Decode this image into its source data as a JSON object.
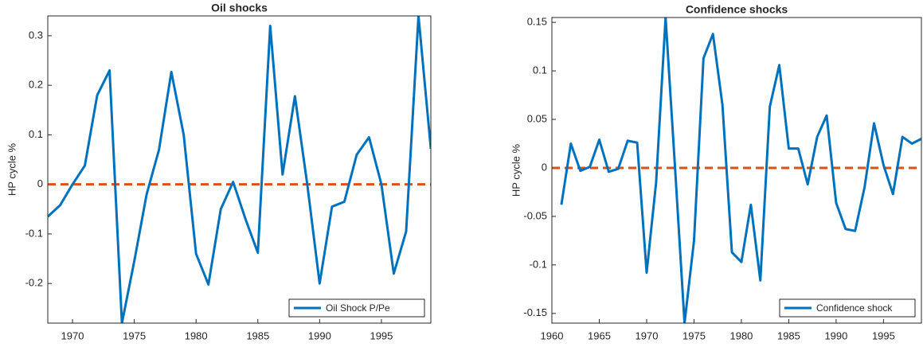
{
  "chart_data": [
    {
      "type": "line",
      "title": "Oil shocks",
      "y_label": "HP cycle %",
      "x": [
        1968,
        1969,
        1970,
        1971,
        1972,
        1973,
        1974,
        1975,
        1976,
        1977,
        1978,
        1979,
        1980,
        1981,
        1982,
        1983,
        1984,
        1985,
        1986,
        1987,
        1988,
        1989,
        1990,
        1991,
        1992,
        1993,
        1994,
        1995,
        1996,
        1997,
        1998,
        1999
      ],
      "series": [
        {
          "name": "Oil Shock P/Pe",
          "color": "#0072bd",
          "values": [
            -0.065,
            -0.042,
            0.0,
            0.038,
            0.18,
            0.23,
            -0.28,
            -0.155,
            -0.02,
            0.07,
            0.227,
            0.1,
            -0.14,
            -0.202,
            -0.05,
            0.005,
            -0.07,
            -0.138,
            0.32,
            0.02,
            0.178,
            0.0,
            -0.2,
            -0.045,
            -0.035,
            0.06,
            0.095,
            0.0,
            -0.18,
            -0.095,
            0.34,
            0.072
          ]
        }
      ],
      "reference_line": {
        "value": 0,
        "color": "#d95319"
      },
      "xlim": [
        1968,
        1999
      ],
      "xticks": [
        1970,
        1975,
        1980,
        1985,
        1990,
        1995
      ],
      "ylim": [
        -0.28,
        0.34
      ],
      "yticks": [
        -0.2,
        -0.1,
        0,
        0.1,
        0.2,
        0.3
      ],
      "legend_loc": "lower right"
    },
    {
      "type": "line",
      "title": "Confidence shocks",
      "y_label": "HP cycle %",
      "x": [
        1961,
        1962,
        1963,
        1964,
        1965,
        1966,
        1967,
        1968,
        1969,
        1970,
        1971,
        1972,
        1973,
        1974,
        1975,
        1976,
        1977,
        1978,
        1979,
        1980,
        1981,
        1982,
        1983,
        1984,
        1985,
        1986,
        1987,
        1988,
        1989,
        1990,
        1991,
        1992,
        1993,
        1994,
        1995,
        1996,
        1997,
        1998,
        1999
      ],
      "series": [
        {
          "name": "Confidence shock",
          "color": "#0072bd",
          "values": [
            -0.038,
            0.025,
            -0.003,
            0.001,
            0.029,
            -0.004,
            -0.001,
            0.028,
            0.026,
            -0.108,
            -0.015,
            0.155,
            0.0,
            -0.16,
            -0.075,
            0.113,
            0.138,
            0.065,
            -0.087,
            -0.097,
            -0.038,
            -0.116,
            0.063,
            0.106,
            0.02,
            0.02,
            -0.017,
            0.032,
            0.054,
            -0.036,
            -0.063,
            -0.065,
            -0.02,
            0.046,
            0.003,
            -0.027,
            0.032,
            0.025,
            0.03
          ]
        }
      ],
      "reference_line": {
        "value": 0,
        "color": "#d95319"
      },
      "xlim": [
        1960,
        1999
      ],
      "xticks": [
        1960,
        1965,
        1970,
        1975,
        1980,
        1985,
        1990,
        1995
      ],
      "ylim": [
        -0.16,
        0.155
      ],
      "yticks": [
        -0.15,
        -0.1,
        -0.05,
        0,
        0.05,
        0.1,
        0.15
      ],
      "legend_loc": "lower right"
    }
  ]
}
